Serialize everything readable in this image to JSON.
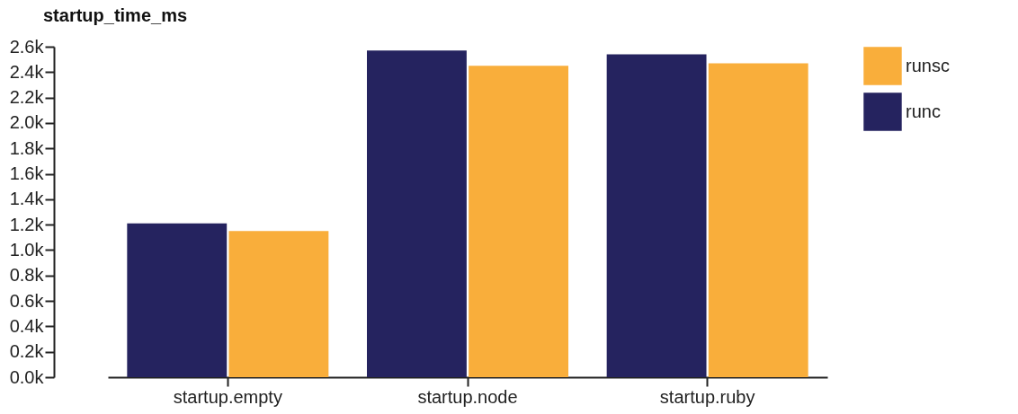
{
  "chart_data": {
    "type": "bar",
    "title": "startup_time_ms",
    "categories": [
      "startup.empty",
      "startup.node",
      "startup.ruby"
    ],
    "series": [
      {
        "name": "runc",
        "color": "#25235f",
        "values": [
          1210,
          2570,
          2540
        ]
      },
      {
        "name": "runsc",
        "color": "#f9ae3b",
        "values": [
          1150,
          2450,
          2470
        ]
      }
    ],
    "ylim": [
      0,
      2600
    ],
    "yticks": [
      {
        "value": 0,
        "label": "0.0k"
      },
      {
        "value": 200,
        "label": "0.2k"
      },
      {
        "value": 400,
        "label": "0.4k"
      },
      {
        "value": 600,
        "label": "0.6k"
      },
      {
        "value": 800,
        "label": "0.8k"
      },
      {
        "value": 1000,
        "label": "1.0k"
      },
      {
        "value": 1200,
        "label": "1.2k"
      },
      {
        "value": 1400,
        "label": "1.4k"
      },
      {
        "value": 1600,
        "label": "1.6k"
      },
      {
        "value": 1800,
        "label": "1.8k"
      },
      {
        "value": 2000,
        "label": "2.0k"
      },
      {
        "value": 2200,
        "label": "2.2k"
      },
      {
        "value": 2400,
        "label": "2.4k"
      },
      {
        "value": 2600,
        "label": "2.6k"
      }
    ],
    "grid": false,
    "legend": "top right"
  }
}
